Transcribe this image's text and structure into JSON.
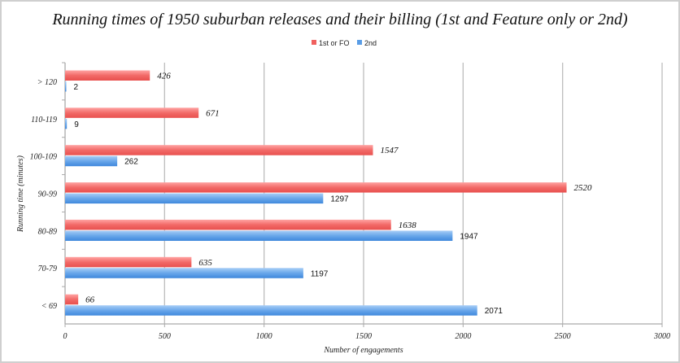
{
  "chart_data": {
    "type": "bar",
    "orientation": "horizontal",
    "title": "Running times of 1950 suburban releases and their billing (1st and Feature only or 2nd)",
    "xlabel": "Number of engagements",
    "ylabel": "Running time (minutes)",
    "xlim": [
      0,
      3000
    ],
    "xticks": [
      "0",
      "500",
      "1000",
      "1500",
      "2000",
      "2500",
      "3000"
    ],
    "grid": true,
    "legend_position": "top-right",
    "categories": [
      "> 120",
      "110-119",
      "100-109",
      "90-99",
      "80-89",
      "70-79",
      "< 69"
    ],
    "series": [
      {
        "name": "1st or FO",
        "color": "#f0605e",
        "values": [
          426,
          671,
          1547,
          2520,
          1638,
          635,
          66
        ]
      },
      {
        "name": "2nd",
        "color": "#5a9de6",
        "values": [
          2,
          9,
          262,
          1297,
          1947,
          1197,
          2071
        ]
      }
    ]
  }
}
